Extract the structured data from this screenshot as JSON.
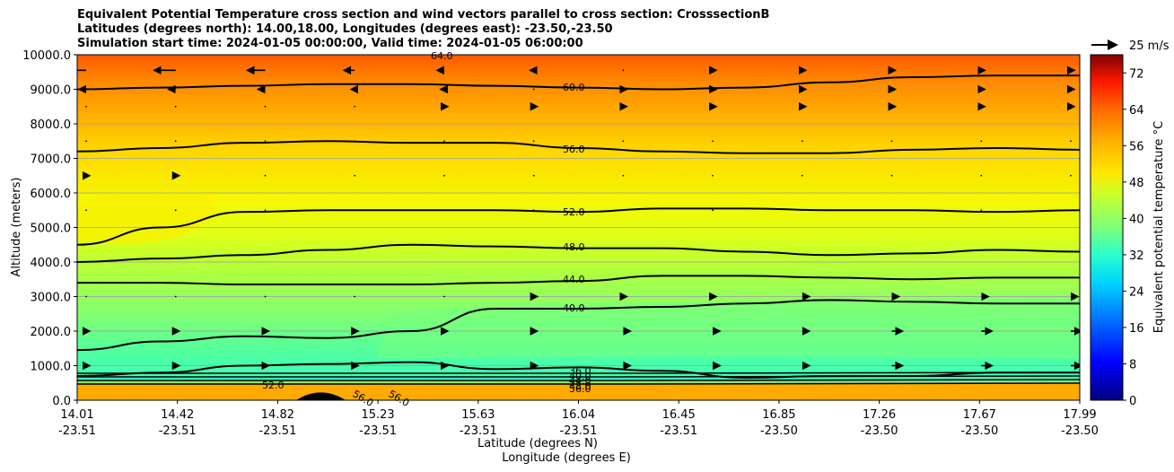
{
  "chart_data": {
    "type": "contour",
    "title": [
      "Equivalent Potential Temperature cross section and wind vectors parallel to cross section: CrosssectionB",
      "Latitudes (degrees north): 14.00,18.00, Longitudes (degrees east): -23.50,-23.50",
      "Simulation start time: 2024-01-05 00:00:00, Valid time: 2024-01-05 06:00:00"
    ],
    "ylabel": "Altitude (meters)",
    "xlabel_lat": "Latitude (degrees N)",
    "xlabel_lon": "Longitude (degrees E)",
    "ylim": [
      0,
      10000
    ],
    "y_ticks": [
      "0.0",
      "1000.0",
      "2000.0",
      "3000.0",
      "4000.0",
      "5000.0",
      "6000.0",
      "7000.0",
      "8000.0",
      "9000.0",
      "10000.0"
    ],
    "x_ticks": [
      {
        "lat": "14.01",
        "lon": "-23.51"
      },
      {
        "lat": "14.42",
        "lon": "-23.51"
      },
      {
        "lat": "14.82",
        "lon": "-23.51"
      },
      {
        "lat": "15.23",
        "lon": "-23.51"
      },
      {
        "lat": "15.63",
        "lon": "-23.51"
      },
      {
        "lat": "16.04",
        "lon": "-23.51"
      },
      {
        "lat": "16.45",
        "lon": "-23.51"
      },
      {
        "lat": "16.85",
        "lon": "-23.50"
      },
      {
        "lat": "17.26",
        "lon": "-23.50"
      },
      {
        "lat": "17.67",
        "lon": "-23.50"
      },
      {
        "lat": "17.99",
        "lon": "-23.50"
      }
    ],
    "colorbar": {
      "label": "Equivalent potential temperature $^\\circ$C",
      "label_display": "Equivalent potential temperature °C",
      "range": [
        0,
        76
      ],
      "ticks": [
        "0",
        "8",
        "16",
        "24",
        "32",
        "40",
        "48",
        "56",
        "64",
        "72"
      ],
      "colormap": "jet"
    },
    "quiver_key": "25 m/s",
    "contour_labels": [
      "60.0",
      "56.0",
      "52.0",
      "48.0",
      "44.0",
      "40.0",
      "36.0",
      "40.0",
      "44.0",
      "48.0",
      "56.0",
      "52.0",
      "56.0",
      "56.0",
      "64.0"
    ],
    "contour_levels": [
      {
        "level": 60,
        "alt_m": [
          9000,
          9050,
          9100,
          9150,
          9150,
          9100,
          9050,
          9000,
          9050,
          9200,
          9350,
          9400,
          9400
        ]
      },
      {
        "level": 56,
        "alt_m": [
          7200,
          7300,
          7450,
          7500,
          7450,
          7450,
          7300,
          7200,
          7150,
          7150,
          7250,
          7300,
          7250
        ]
      },
      {
        "level": 52,
        "alt_m": [
          4500,
          5000,
          5450,
          5500,
          5500,
          5500,
          5450,
          5550,
          5550,
          5500,
          5500,
          5450,
          5500
        ]
      },
      {
        "level": 48,
        "alt_m": [
          4000,
          4100,
          4200,
          4350,
          4500,
          4450,
          4400,
          4400,
          4300,
          4200,
          4250,
          4350,
          4300
        ]
      },
      {
        "level": 44,
        "alt_m": [
          3400,
          3400,
          3350,
          3350,
          3350,
          3400,
          3450,
          3600,
          3600,
          3550,
          3500,
          3550,
          3550
        ]
      },
      {
        "level": 40,
        "alt_m": [
          1450,
          1700,
          1850,
          1800,
          2000,
          2650,
          2650,
          2700,
          2800,
          2900,
          2850,
          2800,
          2800
        ]
      },
      {
        "level": 36,
        "alt_m": [
          700,
          800,
          1000,
          1050,
          1100,
          900,
          950,
          850,
          650,
          700,
          700,
          800,
          800
        ]
      }
    ],
    "wind_u_ms": [
      [
        -6,
        -6,
        -5,
        -3,
        -2,
        -1,
        0,
        1,
        1,
        1,
        1,
        1
      ],
      [
        -2,
        -2,
        -2,
        -1,
        -1,
        0,
        1,
        1,
        1,
        1,
        1,
        1
      ],
      [
        0,
        0,
        0,
        0,
        1,
        1,
        1,
        1,
        1,
        1,
        1,
        1
      ],
      [
        0,
        0,
        0,
        0,
        0,
        0,
        0,
        0,
        0,
        0,
        0,
        0
      ],
      [
        1,
        1,
        0,
        0,
        0,
        0,
        0,
        0,
        0,
        0,
        0,
        0
      ],
      [
        0,
        0,
        0,
        0,
        0,
        0,
        0,
        0,
        0,
        0,
        0,
        0
      ],
      [
        0,
        0,
        0,
        0,
        0,
        1,
        1,
        1,
        2,
        2,
        2,
        2
      ],
      [
        1,
        1,
        1,
        1,
        1,
        1,
        2,
        2,
        2,
        3,
        3,
        3
      ],
      [
        1,
        1,
        1,
        1,
        1,
        1,
        2,
        2,
        2,
        3,
        3,
        3
      ]
    ],
    "legend": "none",
    "grid": "horizontal"
  }
}
